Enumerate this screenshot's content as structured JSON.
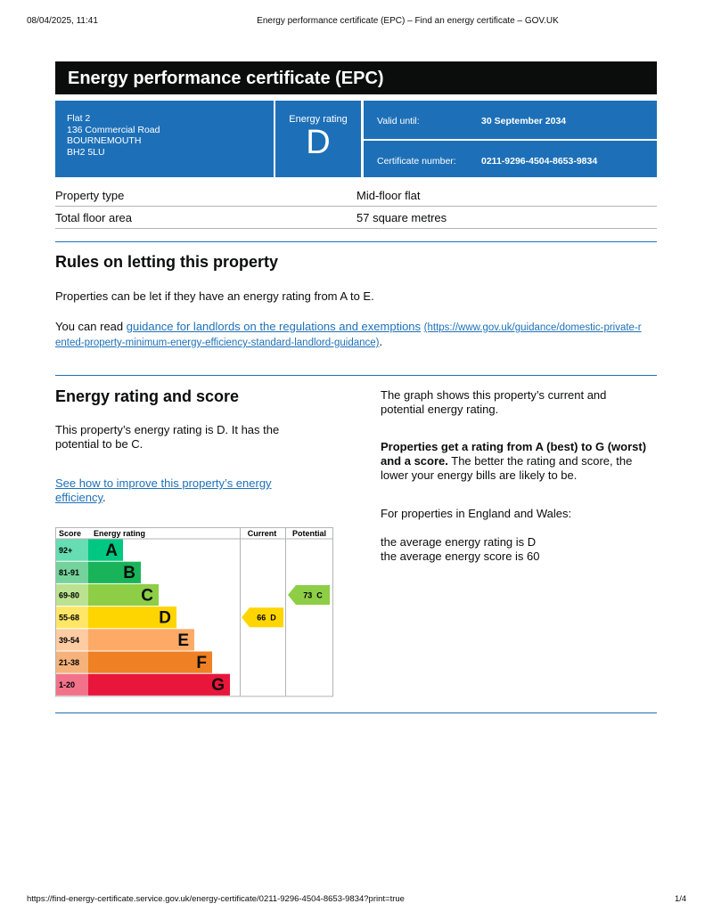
{
  "print_header": {
    "date": "08/04/2025, 11:41",
    "title": "Energy performance certificate (EPC) – Find an energy certificate – GOV.UK"
  },
  "banner": {
    "title": "Energy performance certificate (EPC)"
  },
  "summary": {
    "address": [
      "Flat 2",
      "136 Commercial Road",
      "BOURNEMOUTH",
      "BH2 5LU"
    ],
    "rating_label": "Energy rating",
    "rating": "D",
    "valid_until_label": "Valid until:",
    "valid_until": "30 September 2034",
    "certificate_label": "Certificate number:",
    "certificate_number": "0211-9296-4504-8653-9834"
  },
  "property": {
    "rows": [
      [
        "Property type",
        "Mid-floor flat"
      ],
      [
        "Total floor area",
        "57 square metres"
      ]
    ]
  },
  "rules": {
    "heading": "Rules on letting this property",
    "text": "Properties can be let if they have an energy rating from A to E.",
    "read_prefix": "You can read ",
    "link": "guidance for landlords on the regulations and exemptions",
    "url": "(https://www.gov.uk/guidance/domestic-private-rented-property-minimum-energy-efficiency-standard-landlord-guidance)",
    "end": "."
  },
  "energy": {
    "heading": "Energy rating and score",
    "text": "This property’s energy rating is D. It has the potential to be C.",
    "improve_link": "See how to improve this property’s energy efficiency",
    "improve_end": ".",
    "graph": {
      "headers": [
        "Score",
        "Energy rating",
        "Current",
        "Potential"
      ],
      "bands": [
        {
          "score": "92+",
          "letter": "A",
          "color": "#00c781"
        },
        {
          "score": "81-91",
          "letter": "B",
          "color": "#19b459"
        },
        {
          "score": "69-80",
          "letter": "C",
          "color": "#8dce46"
        },
        {
          "score": "55-68",
          "letter": "D",
          "color": "#ffd500"
        },
        {
          "score": "39-54",
          "letter": "E",
          "color": "#fcaa65"
        },
        {
          "score": "21-38",
          "letter": "F",
          "color": "#ef8023"
        },
        {
          "score": "1-20",
          "letter": "G",
          "color": "#e9153b"
        }
      ],
      "current": {
        "value": 66,
        "letter": "D"
      },
      "potential": {
        "value": 73,
        "letter": "C"
      }
    },
    "info": {
      "graph_text": "The graph shows this property’s current and potential energy rating.",
      "bold": "Properties get a rating from A (best) to G (worst) and a score.",
      "rest": " The better the rating and score, the lower your energy bills are likely to be.",
      "region": "For properties in England and Wales:",
      "avg_rating": "the average energy rating is D",
      "avg_score": "the average energy score is 60"
    }
  },
  "footer": {
    "url": "https://find-energy-certificate.service.gov.uk/energy-certificate/0211-9296-4504-8653-9834?print=true",
    "page": "1/4"
  }
}
